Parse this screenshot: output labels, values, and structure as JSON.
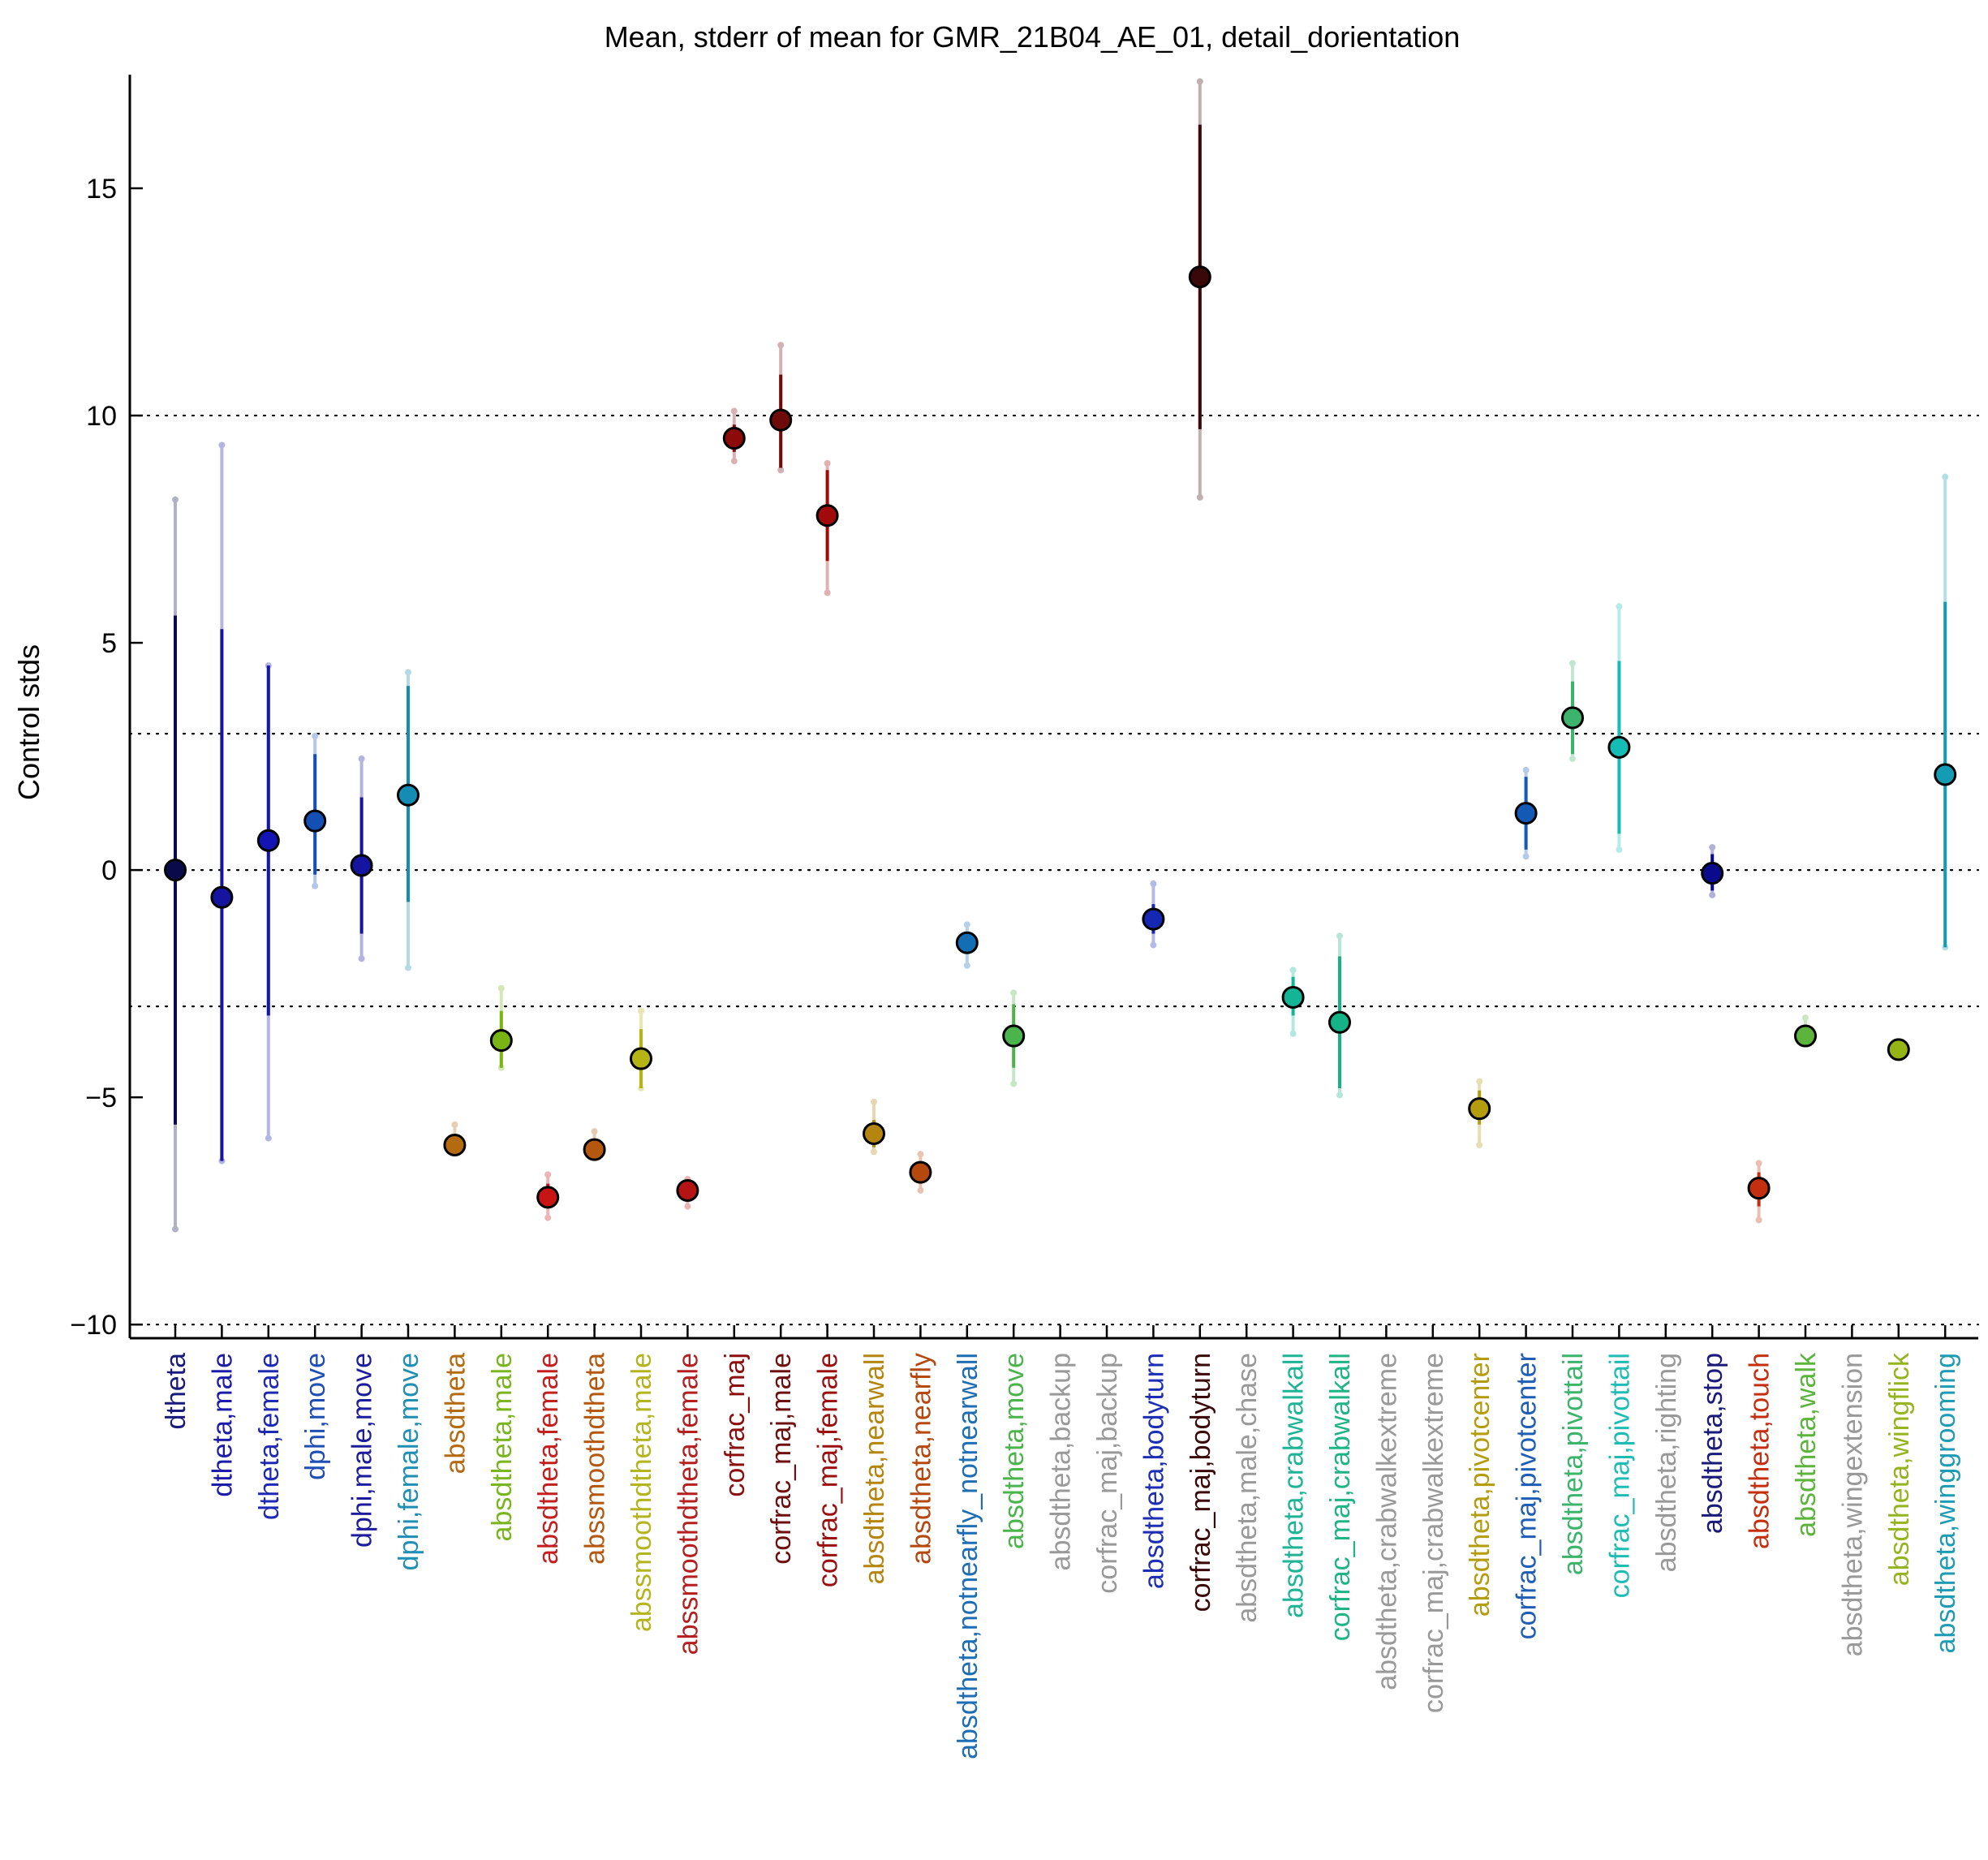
{
  "chart_data": {
    "type": "scatter",
    "title": "Mean, stderr of mean for GMR_21B04_AE_01, detail_dorientation",
    "ylabel": "Control stds",
    "xlabel": "",
    "ylim": [
      -10.3,
      17.5
    ],
    "yticks": [
      15,
      10,
      5,
      0,
      -5,
      -10
    ],
    "ytick_labels": [
      "15",
      "10",
      "5",
      "0",
      "−5",
      "−10"
    ],
    "reference_lines": [
      10,
      3,
      0,
      -3,
      -10
    ],
    "grid": false,
    "categories": [
      "dtheta",
      "dtheta,male",
      "dtheta,female",
      "dphi,move",
      "dphi,male,move",
      "dphi,female,move",
      "absdtheta",
      "absdtheta,male",
      "absdtheta,female",
      "abssmoothdtheta",
      "abssmoothdtheta,male",
      "abssmoothdtheta,female",
      "corfrac_maj",
      "corfrac_maj,male",
      "corfrac_maj,female",
      "absdtheta,nearwall",
      "absdtheta,nearfly",
      "absdtheta,notnearfly_notnearwall",
      "absdtheta,move",
      "absdtheta,backup",
      "corfrac_maj,backup",
      "absdtheta,bodyturn",
      "corfrac_maj,bodyturn",
      "absdtheta,male,chase",
      "absdtheta,crabwalkall",
      "corfrac_maj,crabwalkall",
      "absdtheta,crabwalkextreme",
      "corfrac_maj,crabwalkextreme",
      "absdtheta,pivotcenter",
      "corfrac_maj,pivotcenter",
      "absdtheta,pivottail",
      "corfrac_maj,pivottail",
      "absdtheta,righting",
      "absdtheta,stop",
      "absdtheta,touch",
      "absdtheta,walk",
      "absdtheta,wingextension",
      "absdtheta,wingflick",
      "absdtheta,winggrooming"
    ],
    "label_colors": [
      "#1a1a7a",
      "#1c1ca8",
      "#1f2ab4",
      "#1f4eb4",
      "#1c1c9c",
      "#1f8fb4",
      "#b46a10",
      "#7ab41f",
      "#c41f1f",
      "#b4580f",
      "#b4b41f",
      "#b41f1f",
      "#8c0f0f",
      "#6e0f0f",
      "#9c0f0f",
      "#b4860f",
      "#b4480f",
      "#1f6eb4",
      "#4cb44c",
      "#999999",
      "#999999",
      "#1c2eb4",
      "#3a0808",
      "#999999",
      "#1fb496",
      "#1fb486",
      "#999999",
      "#999999",
      "#b49c0f",
      "#1f5eb4",
      "#3cb46c",
      "#1fbcb4",
      "#999999",
      "#1a1a7a",
      "#c4300f",
      "#5cb43c",
      "#999999",
      "#96b41f",
      "#1f9cb4"
    ],
    "series": [
      {
        "values": [
          0,
          -0.6,
          0.65,
          1.08,
          0.1,
          1.65,
          -6.05,
          -3.75,
          -7.2,
          -6.15,
          -4.15,
          -7.05,
          9.5,
          9.9,
          7.8,
          -5.8,
          -6.65,
          -1.6,
          -3.65,
          null,
          null,
          -1.08,
          13.05,
          null,
          -2.8,
          -3.35,
          null,
          null,
          -5.25,
          1.25,
          3.35,
          2.7,
          null,
          -0.07,
          -7.0,
          -3.65,
          null,
          -3.95,
          2.1
        ],
        "stderr_lower": [
          -5.6,
          -6.4,
          -3.2,
          -0.1,
          -1.4,
          -0.7,
          -6.05,
          -4.35,
          -7.4,
          -6.15,
          -4.8,
          -7.05,
          9.2,
          8.85,
          6.8,
          -6.1,
          -6.85,
          -1.75,
          -4.35,
          null,
          null,
          -1.4,
          9.7,
          null,
          -3.2,
          -4.8,
          null,
          null,
          -5.6,
          0.45,
          2.55,
          0.8,
          null,
          -0.45,
          -7.4,
          -3.65,
          null,
          -3.95,
          -1.7
        ],
        "stderr_upper": [
          5.6,
          5.3,
          4.5,
          2.55,
          1.6,
          4.05,
          -6.05,
          -3.1,
          -6.9,
          -6.15,
          -3.5,
          -7.05,
          9.8,
          10.9,
          8.8,
          -5.5,
          -6.45,
          -1.45,
          -2.95,
          null,
          null,
          -0.75,
          16.4,
          null,
          -2.35,
          -1.9,
          null,
          null,
          -4.85,
          2.05,
          4.15,
          4.6,
          null,
          0.35,
          -6.65,
          -3.65,
          null,
          -3.95,
          5.9
        ],
        "outer_lower": [
          -7.9,
          -6.4,
          -5.9,
          -0.35,
          -1.95,
          -2.15,
          -6.05,
          -4.35,
          -7.65,
          -6.15,
          -4.8,
          -7.4,
          9.0,
          8.8,
          6.1,
          -6.2,
          -7.05,
          -2.1,
          -4.7,
          null,
          null,
          -1.65,
          8.2,
          null,
          -3.6,
          -4.95,
          null,
          null,
          -6.05,
          0.3,
          2.45,
          0.45,
          null,
          -0.55,
          -7.7,
          -3.65,
          null,
          -3.95,
          -1.7
        ],
        "outer_upper": [
          8.15,
          9.35,
          4.5,
          2.95,
          2.45,
          4.35,
          -5.6,
          -2.6,
          -6.7,
          -5.75,
          -3.1,
          -6.8,
          10.1,
          11.55,
          8.95,
          -5.1,
          -6.25,
          -1.2,
          -2.7,
          null,
          null,
          -0.3,
          17.35,
          null,
          -2.2,
          -1.45,
          null,
          null,
          -4.65,
          2.2,
          4.55,
          5.8,
          null,
          0.5,
          -6.45,
          -3.25,
          null,
          -3.95,
          8.65
        ]
      }
    ],
    "marker_colors": [
      "#0a0a4a",
      "#1414a0",
      "#1414b4",
      "#1450b4",
      "#1414a0",
      "#148cb4",
      "#b46a0f",
      "#78b414",
      "#c81414",
      "#b4580f",
      "#b4b414",
      "#b41414",
      "#8c0a0a",
      "#6e0a0a",
      "#a00a0a",
      "#b4860f",
      "#b4480f",
      "#146eb4",
      "#4cb44c",
      "#999999",
      "#999999",
      "#1428b4",
      "#3a0808",
      "#999999",
      "#14b496",
      "#14b486",
      "#999999",
      "#999999",
      "#b49c0f",
      "#145ab4",
      "#3cb46c",
      "#14bcb4",
      "#999999",
      "#0a0a8c",
      "#c4300f",
      "#5cb43c",
      "#999999",
      "#96b414",
      "#149cb4"
    ]
  }
}
